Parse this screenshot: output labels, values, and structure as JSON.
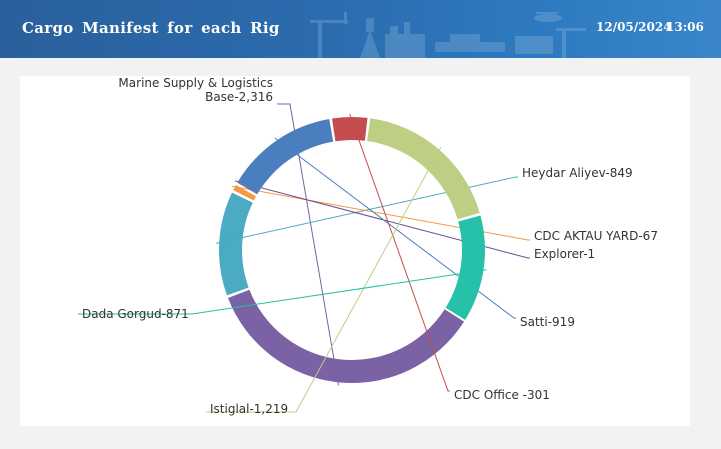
{
  "header": {
    "title": "Cargo  Manifest  for each  Rig",
    "date": "12/05/2024",
    "time": "13:06"
  },
  "chart_data": {
    "type": "pie",
    "title": "",
    "series": [
      {
        "label_lines": [
          "Marine Supply & Logistics",
          "Base-2,316"
        ],
        "name": "Marine Supply & Logistics Base",
        "value": 2316,
        "color": "#7b62a5"
      },
      {
        "label_lines": [
          "Heydar Aliyev-849"
        ],
        "name": "Heydar Aliyev",
        "value": 849,
        "color": "#4aabc3"
      },
      {
        "label_lines": [
          "CDC AKTAU YARD-67"
        ],
        "name": "CDC AKTAU YARD",
        "value": 67,
        "color": "#f39a45"
      },
      {
        "label_lines": [
          "Explorer-1"
        ],
        "name": "Explorer",
        "value": 1,
        "color": "#6a4a8c"
      },
      {
        "label_lines": [
          "Satti-919"
        ],
        "name": "Satti",
        "value": 919,
        "color": "#4a7ebf"
      },
      {
        "label_lines": [
          "CDC Office -301"
        ],
        "name": "CDC Office",
        "value": 301,
        "color": "#c44d4d"
      },
      {
        "label_lines": [
          "Istiglal-1,219"
        ],
        "name": "Istiglal",
        "value": 1219,
        "color": "#bccf83"
      },
      {
        "label_lines": [
          "Dada Gorgud-871"
        ],
        "name": "Dada Gorgud",
        "value": 871,
        "color": "#25c1a8"
      }
    ]
  }
}
